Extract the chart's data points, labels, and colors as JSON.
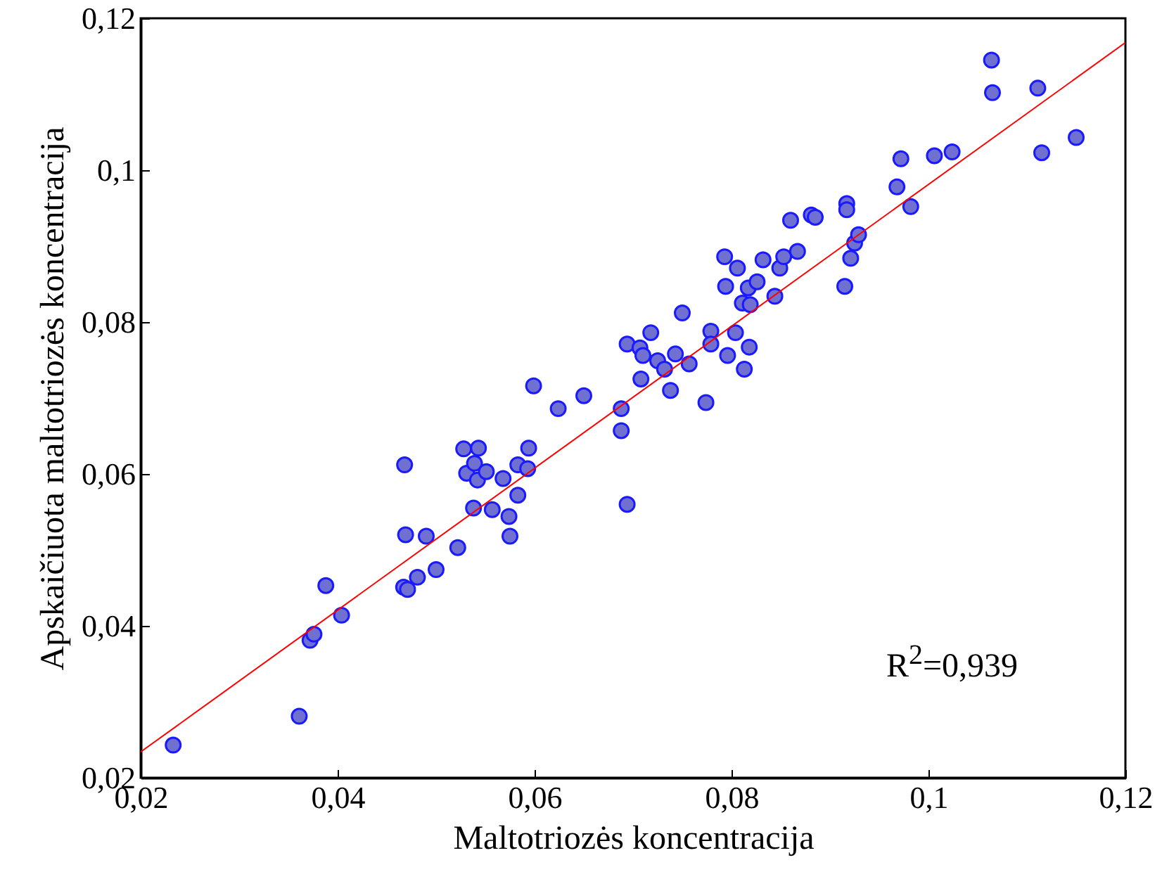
{
  "chart_data": {
    "type": "scatter",
    "xlabel": "Maltotriozės koncentracija",
    "ylabel": "Apskaičiuota maltotriozės koncentracija",
    "xlim": [
      0.02,
      0.12
    ],
    "ylim": [
      0.02,
      0.12
    ],
    "xticks": [
      {
        "value": 0.02,
        "label": "0,02"
      },
      {
        "value": 0.04,
        "label": "0,04"
      },
      {
        "value": 0.06,
        "label": "0,06"
      },
      {
        "value": 0.08,
        "label": "0,08"
      },
      {
        "value": 0.1,
        "label": "0,1"
      },
      {
        "value": 0.12,
        "label": "0,12"
      }
    ],
    "yticks": [
      {
        "value": 0.02,
        "label": "0,02"
      },
      {
        "value": 0.04,
        "label": "0,04"
      },
      {
        "value": 0.06,
        "label": "0,06"
      },
      {
        "value": 0.08,
        "label": "0,08"
      },
      {
        "value": 0.1,
        "label": "0,1"
      },
      {
        "value": 0.12,
        "label": "0,12"
      }
    ],
    "grid": false,
    "marker": "circle",
    "series": [
      {
        "color": "#7070d0",
        "x": [
          0.0233,
          0.0361,
          0.0372,
          0.0376,
          0.0388,
          0.0404,
          0.0468,
          0.0469,
          0.0467,
          0.0471,
          0.0481,
          0.049,
          0.05,
          0.0522,
          0.0528,
          0.0543,
          0.0531,
          0.0539,
          0.0538,
          0.0542,
          0.0551,
          0.0557,
          0.0568,
          0.0574,
          0.0575,
          0.0583,
          0.0583,
          0.0594,
          0.0593,
          0.0599,
          0.0624,
          0.065,
          0.0688,
          0.0688,
          0.0694,
          0.0694,
          0.0707,
          0.071,
          0.0718,
          0.0708,
          0.0725,
          0.0732,
          0.0738,
          0.0743,
          0.075,
          0.0757,
          0.0774,
          0.0779,
          0.0779,
          0.0796,
          0.0793,
          0.0794,
          0.0804,
          0.0806,
          0.0811,
          0.0813,
          0.0817,
          0.0818,
          0.0819,
          0.0826,
          0.0832,
          0.0844,
          0.0849,
          0.0853,
          0.086,
          0.0867,
          0.0881,
          0.0885,
          0.0917,
          0.0917,
          0.0915,
          0.0921,
          0.0925,
          0.0929,
          0.0968,
          0.0972,
          0.0982,
          0.1006,
          0.1024,
          0.1064,
          0.1065,
          0.1111,
          0.1115,
          0.115
        ],
        "values": [
          0.0243,
          0.0281,
          0.0381,
          0.0389,
          0.0453,
          0.0414,
          0.0612,
          0.052,
          0.0451,
          0.0448,
          0.0464,
          0.0518,
          0.0474,
          0.0503,
          0.0633,
          0.0634,
          0.0601,
          0.0614,
          0.0555,
          0.0592,
          0.0603,
          0.0553,
          0.0594,
          0.0544,
          0.0518,
          0.0612,
          0.0572,
          0.0634,
          0.0607,
          0.0716,
          0.0686,
          0.0703,
          0.0657,
          0.0686,
          0.0771,
          0.056,
          0.0766,
          0.0756,
          0.0786,
          0.0725,
          0.0749,
          0.0738,
          0.071,
          0.0758,
          0.0812,
          0.0745,
          0.0694,
          0.0788,
          0.0771,
          0.0756,
          0.0886,
          0.0847,
          0.0786,
          0.0871,
          0.0825,
          0.0738,
          0.0845,
          0.0767,
          0.0823,
          0.0853,
          0.0882,
          0.0834,
          0.0871,
          0.0886,
          0.0934,
          0.0893,
          0.0941,
          0.0938,
          0.0956,
          0.0948,
          0.0847,
          0.0884,
          0.0904,
          0.0915,
          0.0978,
          0.1015,
          0.0952,
          0.1019,
          0.1024,
          0.1145,
          0.1102,
          0.1108,
          0.1023,
          0.1043
        ]
      },
      {
        "type": "line",
        "color": "#ff0000",
        "marker": "none",
        "line_style": "solid",
        "x": [
          0.02,
          0.12
        ],
        "values": [
          0.0234,
          0.1168
        ]
      }
    ],
    "annotations": [
      "R$^{2}$=0,939"
    ]
  }
}
